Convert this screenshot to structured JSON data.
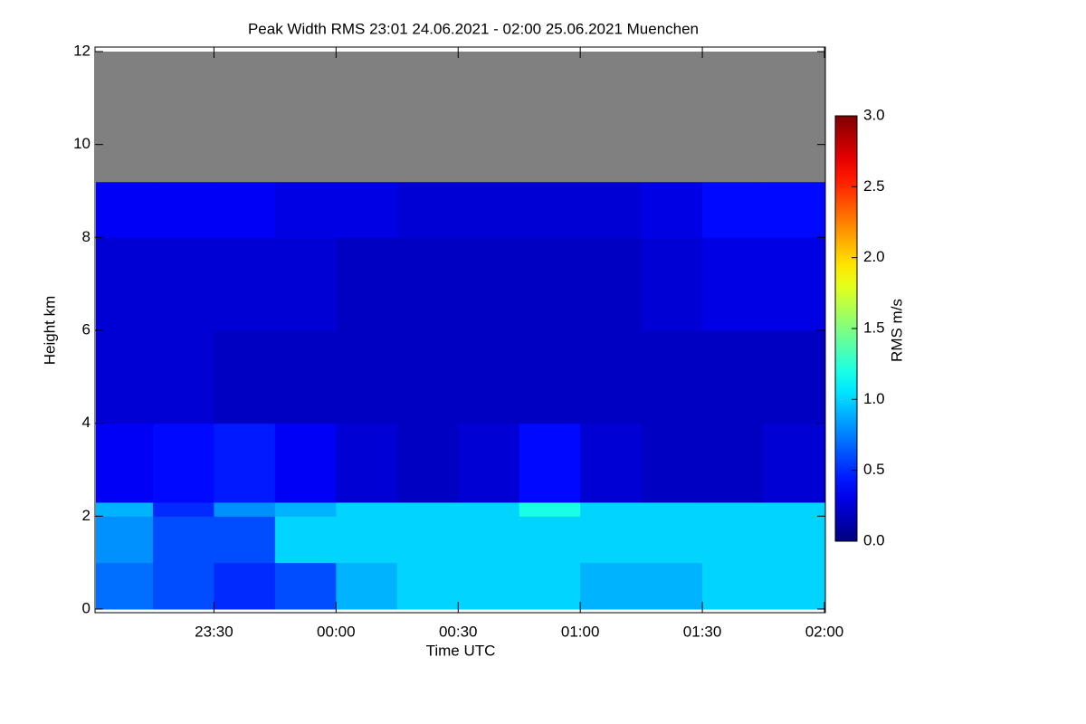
{
  "chart_data": {
    "type": "heatmap",
    "title": "Peak Width RMS   23:01 24.06.2021 - 02:00 25.06.2021 Muenchen",
    "xlabel": "Time UTC",
    "ylabel": "Height km",
    "colorbar_label": "RMS m/s",
    "xlim": [
      -59,
      120
    ],
    "xticks": [
      {
        "value": -30,
        "label": "23:30"
      },
      {
        "value": 0,
        "label": "00:00"
      },
      {
        "value": 30,
        "label": "00:30"
      },
      {
        "value": 60,
        "label": "01:00"
      },
      {
        "value": 90,
        "label": "01:30"
      },
      {
        "value": 120,
        "label": "02:00"
      }
    ],
    "ylim": [
      0,
      12
    ],
    "yticks": [
      0,
      2,
      4,
      6,
      8,
      10,
      12
    ],
    "clim": [
      0,
      3
    ],
    "cticks": [
      {
        "value": 0,
        "label": "0.0"
      },
      {
        "value": 0.5,
        "label": "0.5"
      },
      {
        "value": 1,
        "label": "1.0"
      },
      {
        "value": 1.5,
        "label": "1.5"
      },
      {
        "value": 2,
        "label": "2.0"
      },
      {
        "value": 2.5,
        "label": "2.5"
      },
      {
        "value": 3,
        "label": "3.0"
      }
    ],
    "colormap": "jet",
    "null_color": "#808080",
    "x_bins": [
      -59,
      -45,
      -30,
      -15,
      0,
      15,
      30,
      45,
      60,
      75,
      90,
      105,
      120
    ],
    "y_bins": [
      0,
      1,
      2,
      2.3,
      4,
      6,
      8,
      9.2,
      12
    ],
    "values": [
      [
        0.7,
        0.6,
        0.5,
        0.6,
        0.9,
        1.0,
        1.0,
        1.0,
        0.9,
        0.9,
        1.0,
        1.0
      ],
      [
        0.8,
        0.6,
        0.6,
        1.0,
        1.0,
        1.0,
        1.0,
        1.0,
        1.0,
        1.0,
        1.0,
        1.0
      ],
      [
        0.9,
        0.5,
        0.8,
        0.9,
        1.0,
        1.0,
        1.0,
        1.2,
        1.0,
        1.0,
        1.0,
        1.0
      ],
      [
        0.35,
        0.4,
        0.45,
        0.35,
        0.25,
        0.2,
        0.25,
        0.4,
        0.25,
        0.2,
        0.2,
        0.25
      ],
      [
        0.25,
        0.25,
        0.2,
        0.2,
        0.2,
        0.2,
        0.2,
        0.2,
        0.2,
        0.2,
        0.2,
        0.2
      ],
      [
        0.25,
        0.25,
        0.25,
        0.25,
        0.2,
        0.2,
        0.2,
        0.2,
        0.2,
        0.25,
        0.3,
        0.3
      ],
      [
        0.35,
        0.35,
        0.35,
        0.3,
        0.3,
        0.25,
        0.25,
        0.25,
        0.25,
        0.3,
        0.4,
        0.4
      ],
      [
        null,
        null,
        null,
        null,
        null,
        null,
        null,
        null,
        null,
        null,
        null,
        null
      ]
    ]
  }
}
